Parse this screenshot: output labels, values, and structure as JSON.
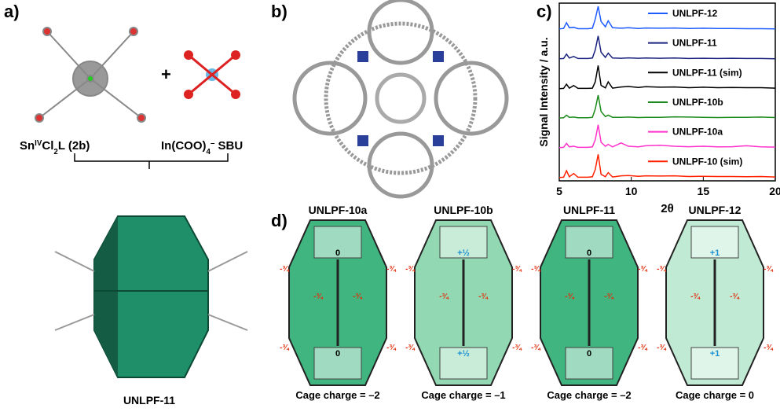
{
  "panels": {
    "a": {
      "label": "a)",
      "ligand": {
        "prefix": "Sn",
        "sup": "IV",
        "mid": "Cl",
        "sub": "2",
        "suffix": "L (2b)"
      },
      "plus": "+",
      "sbu": {
        "prefix": "In(COO)",
        "sub": "4",
        "sup": "–",
        "suffix": " SBU"
      },
      "product": "UNLPF-11"
    },
    "b": {
      "label": "b)"
    },
    "c": {
      "label": "c)"
    },
    "d": {
      "label": "d)",
      "cages": [
        {
          "name": "UNLPF-10a",
          "caption": "Cage charge = –2",
          "center": "0",
          "corner": "-¾",
          "fill": "#1fa86a"
        },
        {
          "name": "UNLPF-10b",
          "caption": "Cage charge = –1",
          "center": "+½",
          "corner": "-¾",
          "fill": "#7fd2a6"
        },
        {
          "name": "UNLPF-11",
          "caption": "Cage charge = –2",
          "center": "0",
          "corner": "-¾",
          "fill": "#1fa86a"
        },
        {
          "name": "UNLPF-12",
          "caption": "Cage charge = 0",
          "center": "+1",
          "corner": "-¾",
          "fill": "#b5e6cb"
        }
      ]
    }
  },
  "chart_data": {
    "type": "line",
    "xlabel": "2θ",
    "ylabel": "Signal Intensity / a.u.",
    "xlim": [
      5,
      20
    ],
    "xticks": [
      5,
      10,
      15,
      20
    ],
    "x": [
      5,
      5.3,
      5.5,
      5.7,
      6,
      6.3,
      7,
      7.3,
      7.5,
      7.7,
      7.9,
      8.2,
      8.4,
      8.7,
      9.3,
      9.8,
      10.5,
      11,
      12,
      13,
      14,
      15,
      16,
      17,
      18,
      19,
      20
    ],
    "series": [
      {
        "name": "UNLPF-12",
        "color": "#1f5cff",
        "values": [
          3,
          5,
          30,
          8,
          10,
          4,
          4,
          6,
          45,
          100,
          35,
          12,
          38,
          8,
          6,
          8,
          5,
          7,
          6,
          7,
          5,
          6,
          5,
          5,
          4,
          4,
          3
        ]
      },
      {
        "name": "UNLPF-11",
        "color": "#1a237e",
        "values": [
          2,
          3,
          22,
          5,
          12,
          3,
          3,
          5,
          40,
          100,
          30,
          8,
          26,
          5,
          4,
          6,
          4,
          5,
          4,
          5,
          3,
          4,
          3,
          4,
          3,
          3,
          2
        ]
      },
      {
        "name": "UNLPF-11 (sim)",
        "color": "#000000",
        "values": [
          1,
          2,
          20,
          3,
          14,
          2,
          2,
          3,
          30,
          100,
          15,
          4,
          30,
          3,
          8,
          10,
          6,
          9,
          7,
          8,
          5,
          7,
          5,
          6,
          5,
          5,
          3
        ]
      },
      {
        "name": "UNLPF-10b",
        "color": "#1a8a1a",
        "values": [
          2,
          3,
          14,
          5,
          6,
          3,
          3,
          5,
          40,
          100,
          30,
          8,
          14,
          5,
          5,
          6,
          4,
          5,
          5,
          7,
          6,
          5,
          4,
          5,
          5,
          6,
          4
        ]
      },
      {
        "name": "UNLPF-10a",
        "color": "#ff33cc",
        "values": [
          2,
          3,
          20,
          5,
          8,
          3,
          3,
          5,
          35,
          100,
          25,
          8,
          16,
          5,
          22,
          8,
          5,
          10,
          12,
          8,
          6,
          8,
          5,
          6,
          10,
          5,
          4
        ]
      },
      {
        "name": "UNLPF-10 (sim)",
        "color": "#ff2200",
        "values": [
          1,
          2,
          30,
          4,
          18,
          2,
          2,
          4,
          35,
          100,
          15,
          4,
          22,
          3,
          8,
          9,
          6,
          8,
          7,
          8,
          5,
          6,
          5,
          5,
          4,
          5,
          3
        ]
      }
    ]
  }
}
